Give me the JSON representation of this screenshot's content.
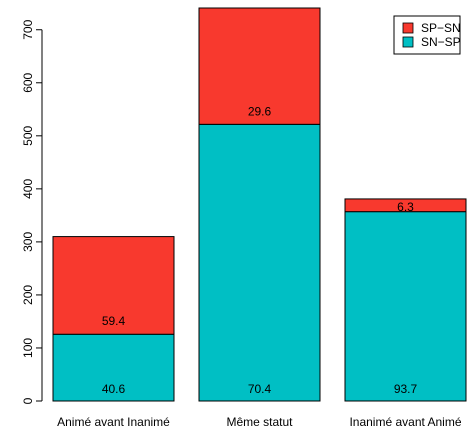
{
  "chart_data": {
    "type": "bar",
    "stacked": true,
    "categories": [
      "Animé avant Inanimé",
      "Même statut",
      "Inanimé avant Animé"
    ],
    "totals": [
      310,
      741,
      381
    ],
    "series": [
      {
        "name": "SN−SP",
        "color": "#00BFC4",
        "percent_labels": [
          "40.6",
          "70.4",
          "93.7"
        ]
      },
      {
        "name": "SP−SN",
        "color": "#F8392E",
        "percent_labels": [
          "59.4",
          "29.6",
          "6.3"
        ]
      }
    ],
    "legend_order": [
      1,
      0
    ],
    "legend_position": "top-right",
    "yticks": [
      0,
      100,
      200,
      300,
      400,
      500,
      600,
      700
    ],
    "ylim": [
      0,
      741
    ],
    "title": "",
    "xlabel": "",
    "ylabel": ""
  }
}
